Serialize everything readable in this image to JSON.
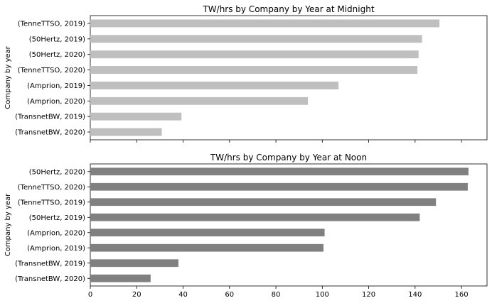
{
  "chart_data": [
    {
      "type": "bar",
      "orientation": "horizontal",
      "title": "TW/hrs by Company by Year at Midnight",
      "ylabel": "Company by year",
      "xlabel": "",
      "xlim": [
        0,
        171
      ],
      "xticks": [],
      "bar_color": "#bfbfbf",
      "categories": [
        "(TenneTTSO, 2019)",
        "(50Hertz, 2019)",
        "(50Hertz, 2020)",
        "(TenneTTSO, 2020)",
        "(Amprion, 2019)",
        "(Amprion, 2020)",
        "(TransnetBW, 2019)",
        "(TransnetBW, 2020)"
      ],
      "values": [
        150.5,
        143.0,
        141.5,
        141.0,
        107.0,
        93.8,
        39.3,
        30.8
      ]
    },
    {
      "type": "bar",
      "orientation": "horizontal",
      "title": "TW/hrs by Company by Year at Noon",
      "ylabel": "Company by year",
      "xlabel": "",
      "xlim": [
        0,
        171
      ],
      "xticks": [
        "0",
        "20",
        "40",
        "60",
        "80",
        "100",
        "120",
        "140",
        "160"
      ],
      "bar_color": "#808080",
      "categories": [
        "(50Hertz, 2020)",
        "(TenneTTSO, 2020)",
        "(TenneTTSO, 2019)",
        "(50Hertz, 2019)",
        "(Amprion, 2020)",
        "(Amprion, 2019)",
        "(TransnetBW, 2019)",
        "(TransnetBW, 2020)"
      ],
      "values": [
        163.0,
        162.7,
        149.0,
        142.0,
        101.0,
        100.5,
        38.0,
        26.0
      ]
    }
  ]
}
